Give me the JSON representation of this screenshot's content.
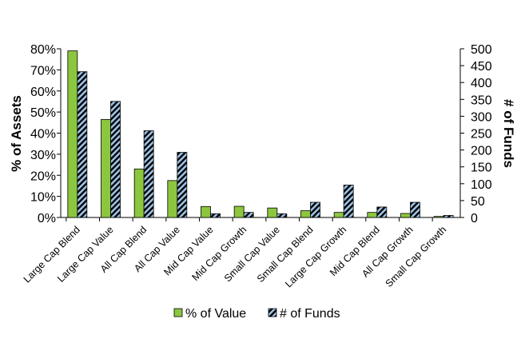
{
  "chart_data": {
    "type": "bar",
    "categories": [
      "Large Cap Blend",
      "Large Cap Value",
      "All Cap Blend",
      "All Cap Value",
      "Mid Cap Value",
      "Mid Cap Growth",
      "Small Cap Value",
      "Small Cap Blend",
      "Large Cap Growth",
      "Mid Cap Blend",
      "All Cap Growth",
      "Small Cap Growth"
    ],
    "series": [
      {
        "name": "% of Value",
        "axis": "left",
        "color": "#8cc63f",
        "pattern": "solid",
        "values": [
          79,
          46.5,
          23,
          17.5,
          5.2,
          5.3,
          4.5,
          3.2,
          2.4,
          2.4,
          1.9,
          0.5
        ]
      },
      {
        "name": "# of Funds",
        "axis": "right",
        "color": "#9dc3e6",
        "pattern": "diagonal-stripes",
        "values": [
          432,
          344,
          257,
          193,
          11,
          15,
          11,
          45,
          96,
          31,
          45,
          6
        ]
      }
    ],
    "ylabel": "% of Assets",
    "y2label": "# of Funds",
    "ylim": [
      0,
      80
    ],
    "y2lim": [
      0,
      500
    ],
    "yticks": [
      "0%",
      "10%",
      "20%",
      "30%",
      "40%",
      "50%",
      "60%",
      "70%",
      "80%"
    ],
    "y2ticks": [
      "0",
      "50",
      "100",
      "150",
      "200",
      "250",
      "300",
      "350",
      "400",
      "450",
      "500"
    ],
    "grid": false,
    "legend": "bottom"
  }
}
